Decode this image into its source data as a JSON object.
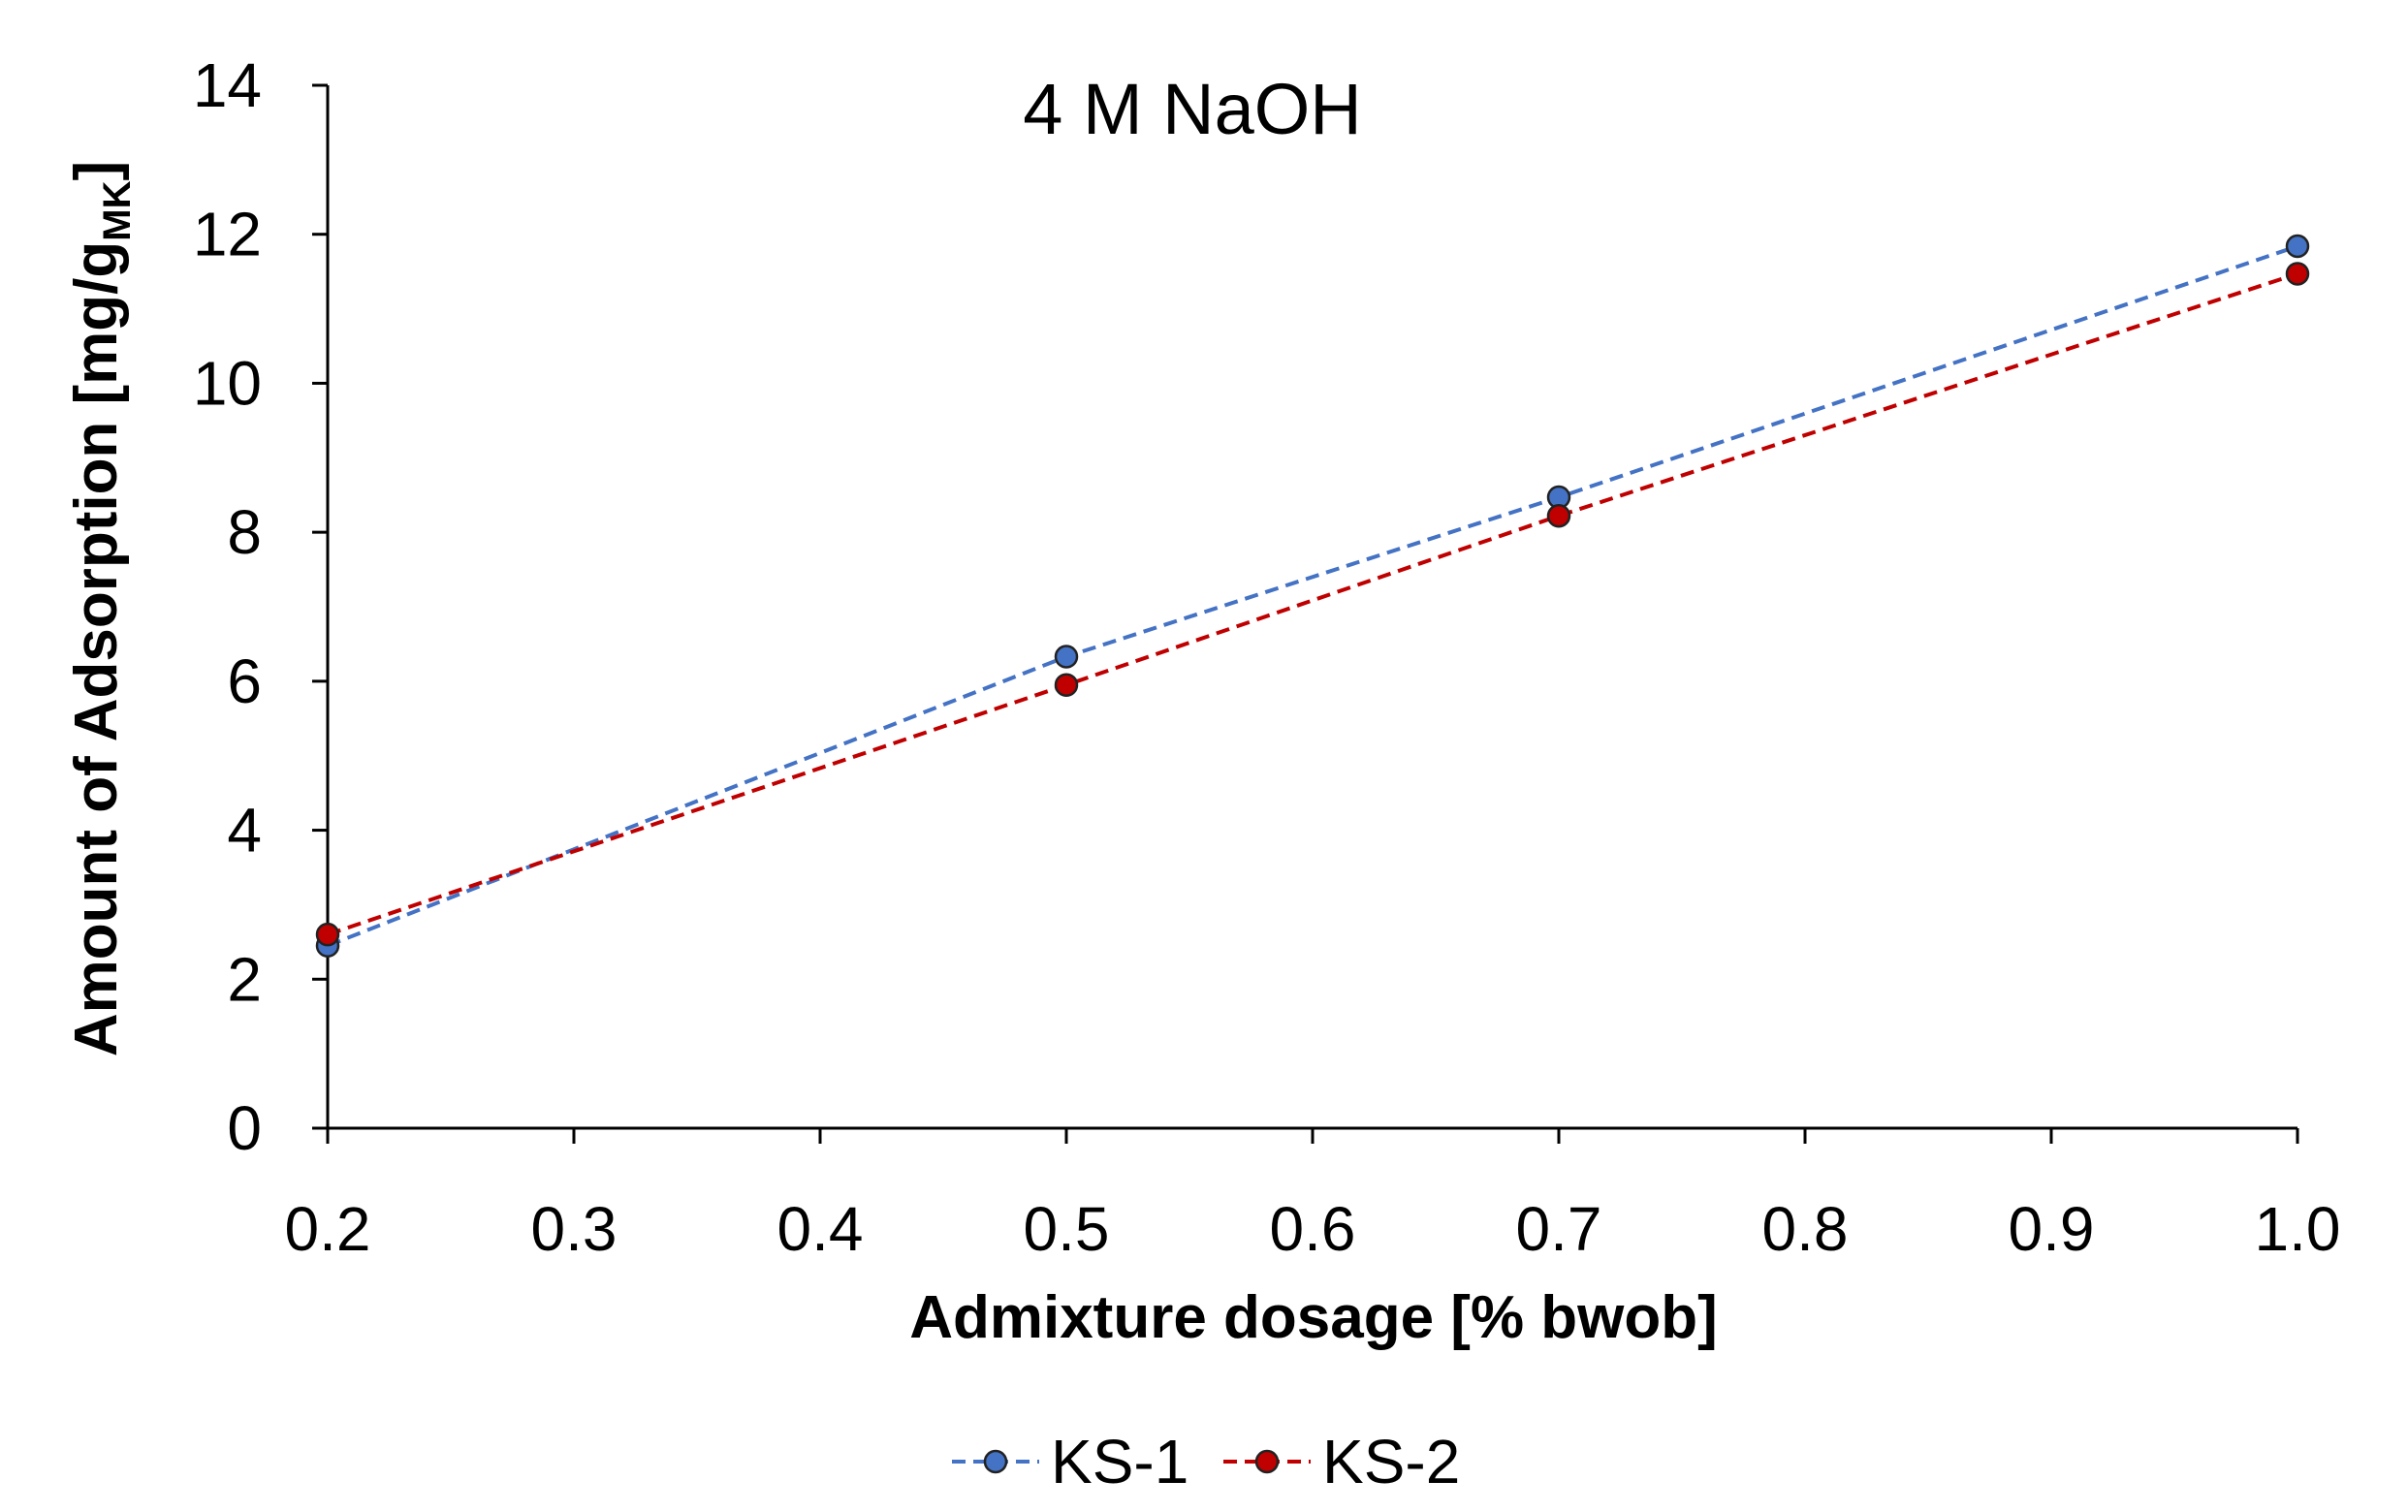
{
  "chart_data": {
    "type": "line",
    "title": "4 M NaOH",
    "xlabel": "Admixture dosage [% bwob]",
    "ylabel": "Amount of Adsorption [mg/g",
    "ylabel_subscript": "MK",
    "ylabel_suffix": "]",
    "xlim": [
      0.2,
      1.0
    ],
    "ylim": [
      0,
      14
    ],
    "xticks": [
      "0.2",
      "0.3",
      "0.4",
      "0.5",
      "0.6",
      "0.7",
      "0.8",
      "0.9",
      "1.0"
    ],
    "yticks": [
      "0",
      "2",
      "4",
      "6",
      "8",
      "10",
      "12",
      "14"
    ],
    "grid": false,
    "legend_position": "bottom",
    "line_style": "dashed",
    "series": [
      {
        "name": "KS-1",
        "color": "#4472C4",
        "x": [
          0.2,
          0.5,
          0.7,
          1.0
        ],
        "y": [
          2.45,
          6.33,
          8.47,
          11.84
        ]
      },
      {
        "name": "KS-2",
        "color": "#C00000",
        "x": [
          0.2,
          0.5,
          0.7,
          1.0
        ],
        "y": [
          2.6,
          5.95,
          8.22,
          11.47
        ]
      }
    ]
  }
}
